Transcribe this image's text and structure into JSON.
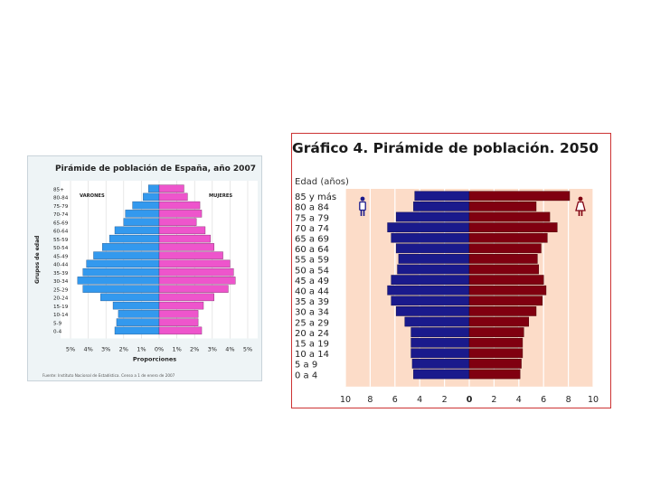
{
  "chart_data": [
    {
      "type": "bar",
      "title": "Pirámide de población de España, año 2007",
      "ylabel": "Grupos de edad",
      "xlabel": "Proporciones",
      "male_label": "VARONES",
      "female_label": "MUJERES",
      "source": "Fuente: Instituto Nacional de Estadística. Censo a 1 de enero de 2007",
      "xticks": [
        "5%",
        "4%",
        "3%",
        "2%",
        "1%",
        "0%",
        "1%",
        "2%",
        "3%",
        "4%",
        "5%"
      ],
      "xlim": [
        -5,
        5
      ],
      "categories": [
        "85+",
        "80-84",
        "75-79",
        "70-74",
        "65-69",
        "60-64",
        "55-59",
        "50-54",
        "45-49",
        "40-44",
        "35-39",
        "30-34",
        "25-29",
        "20-24",
        "15-19",
        "10-14",
        "5-9",
        "0-4"
      ],
      "series": [
        {
          "name": "VARONES",
          "color": "#3399ee",
          "values": [
            0.6,
            0.9,
            1.5,
            1.9,
            2.0,
            2.5,
            2.8,
            3.2,
            3.7,
            4.1,
            4.3,
            4.6,
            4.3,
            3.3,
            2.6,
            2.3,
            2.4,
            2.5
          ]
        },
        {
          "name": "MUJERES",
          "color": "#ee55cc",
          "values": [
            1.4,
            1.6,
            2.3,
            2.4,
            2.1,
            2.6,
            2.9,
            3.1,
            3.6,
            4.0,
            4.2,
            4.3,
            3.9,
            3.1,
            2.5,
            2.2,
            2.2,
            2.4
          ]
        }
      ]
    },
    {
      "type": "bar",
      "title": "Gráfico 4. Pirámide de población. 2050",
      "ylabel": "Edad (años)",
      "xticks": [
        "10",
        "8",
        "6",
        "4",
        "2",
        "0",
        "2",
        "4",
        "6",
        "8",
        "10"
      ],
      "xlim": [
        -10,
        10
      ],
      "categories": [
        "85 y más",
        "80 a 84",
        "75 a 79",
        "70 a 74",
        "65 a 69",
        "60 a 64",
        "55 a 59",
        "50 a 54",
        "45 a 49",
        "40 a 44",
        "35 a 39",
        "30 a 34",
        "25 a 29",
        "20 a 24",
        "15 a 19",
        "10 a 14",
        "5 a 9",
        "0 a 4"
      ],
      "series": [
        {
          "name": "Hombres",
          "color": "#1a1a8c",
          "values": [
            4.4,
            4.5,
            5.9,
            6.6,
            6.3,
            5.9,
            5.7,
            5.8,
            6.3,
            6.6,
            6.3,
            5.9,
            5.2,
            4.7,
            4.7,
            4.7,
            4.6,
            4.5
          ]
        },
        {
          "name": "Mujeres",
          "color": "#800010",
          "values": [
            8.1,
            5.4,
            6.5,
            7.1,
            6.3,
            5.8,
            5.5,
            5.6,
            6.0,
            6.2,
            5.9,
            5.4,
            4.8,
            4.4,
            4.3,
            4.3,
            4.2,
            4.1
          ]
        }
      ]
    }
  ]
}
